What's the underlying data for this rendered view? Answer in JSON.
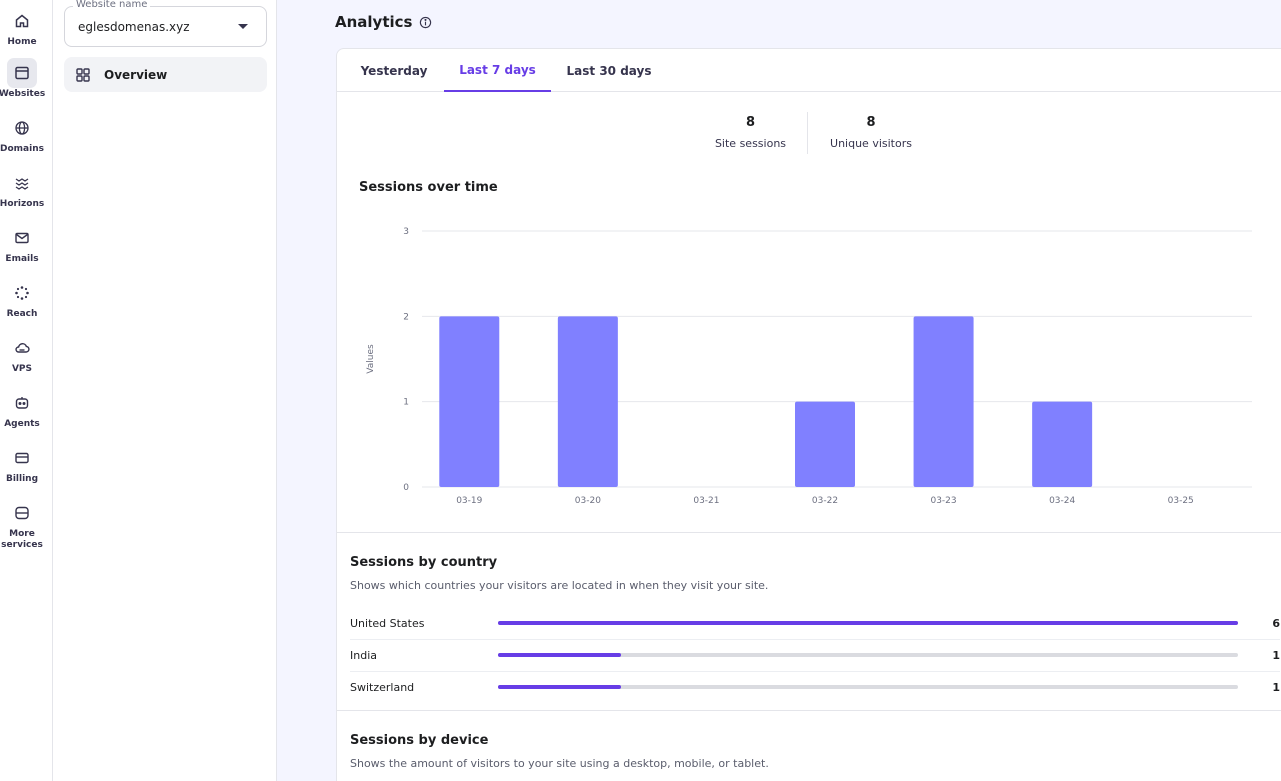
{
  "rail": {
    "items": [
      {
        "label": "Home",
        "icon": "home-icon"
      },
      {
        "label": "Websites",
        "icon": "websites-icon"
      },
      {
        "label": "Domains",
        "icon": "globe-icon"
      },
      {
        "label": "Horizons",
        "icon": "horizons-icon"
      },
      {
        "label": "Emails",
        "icon": "mail-icon"
      },
      {
        "label": "Reach",
        "icon": "reach-icon"
      },
      {
        "label": "VPS",
        "icon": "cloud-icon"
      },
      {
        "label": "Agents",
        "icon": "agent-icon"
      },
      {
        "label": "Billing",
        "icon": "card-icon"
      },
      {
        "label": "More services",
        "icon": "more-services-icon"
      }
    ],
    "active_index": 1
  },
  "sidebar": {
    "website_label": "Website name",
    "website_value": "eglesdomenas.xyz",
    "overview_label": "Overview"
  },
  "header": {
    "title": "Analytics"
  },
  "tabs": [
    {
      "label": "Yesterday"
    },
    {
      "label": "Last 7 days"
    },
    {
      "label": "Last 30 days"
    }
  ],
  "active_tab": 1,
  "stats": {
    "sessions_value": "8",
    "sessions_label": "Site sessions",
    "visitors_value": "8",
    "visitors_label": "Unique visitors"
  },
  "sessions_over_time": {
    "title": "Sessions over time"
  },
  "chart_data": {
    "type": "bar",
    "title": "Sessions over time",
    "categories": [
      "03-19",
      "03-20",
      "03-21",
      "03-22",
      "03-23",
      "03-24",
      "03-25"
    ],
    "values": [
      2,
      2,
      0,
      1,
      2,
      1,
      0
    ],
    "ylabel": "Values",
    "xlabel": "",
    "ylim": [
      0,
      3
    ],
    "yticks": [
      0,
      1,
      2,
      3
    ],
    "grid": true,
    "bar_color": "#8080ff"
  },
  "country": {
    "title": "Sessions by country",
    "description": "Shows which countries your visitors are located in when they visit your site.",
    "rows": [
      {
        "name": "United States",
        "count": 6,
        "count_label": "6"
      },
      {
        "name": "India",
        "count": 1,
        "count_label": "1"
      },
      {
        "name": "Switzerland",
        "count": 1,
        "count_label": "1"
      }
    ],
    "max": 6
  },
  "device": {
    "title": "Sessions by device",
    "description": "Shows the amount of visitors to your site using a desktop, mobile, or tablet."
  },
  "colors": {
    "accent": "#673de6",
    "bar": "#8080ff"
  }
}
